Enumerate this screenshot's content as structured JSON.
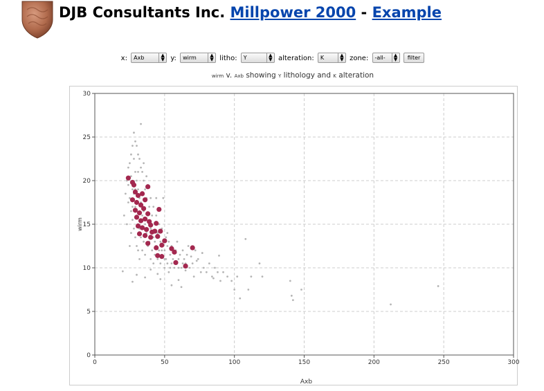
{
  "header": {
    "company": "DJB Consultants Inc.",
    "product_link": "Millpower 2000",
    "separator": "-",
    "example_link": "Example"
  },
  "logo": {
    "icon": "copper-shield-logo",
    "color": "#b06a4c"
  },
  "controls": {
    "x_label": "x:",
    "x_value": "Axb",
    "y_label": "y:",
    "y_value": "wirm",
    "litho_label": "litho:",
    "litho_value": "Y",
    "alteration_label": "alteration:",
    "alteration_value": "K",
    "zone_label": "zone:",
    "zone_value": "-all-",
    "filter_label": "filter",
    "arrow_glyph": "▲▼"
  },
  "subtitle": {
    "y_var": "wirm",
    "v": "v.",
    "x_var": "Axb",
    "showing": "showing",
    "litho": "Y",
    "lithology": "lithology and",
    "alt": "K",
    "alteration": "alteration"
  },
  "chart_data": {
    "type": "scatter",
    "xlabel": "Axb",
    "ylabel": "wirm",
    "xlim": [
      0,
      300
    ],
    "ylim": [
      0,
      30
    ],
    "xticks": [
      0,
      50,
      100,
      150,
      200,
      250,
      300
    ],
    "yticks": [
      0,
      5,
      10,
      15,
      20,
      25,
      30
    ],
    "grid": true,
    "colors": {
      "background_points": "#b5b5b5",
      "highlight_points": "#a3284f",
      "grid": "#cccccc"
    },
    "series": [
      {
        "role": "background",
        "points": [
          [
            20,
            9.6
          ],
          [
            22,
            18.5
          ],
          [
            23,
            20
          ],
          [
            24,
            21.5
          ],
          [
            24,
            17.5
          ],
          [
            25,
            22
          ],
          [
            25,
            18
          ],
          [
            26,
            23
          ],
          [
            26,
            20.5
          ],
          [
            26,
            16.5
          ],
          [
            27,
            24
          ],
          [
            27,
            19
          ],
          [
            27,
            15.5
          ],
          [
            28,
            25.5
          ],
          [
            28,
            22.5
          ],
          [
            28,
            18.5
          ],
          [
            28,
            14.5
          ],
          [
            29,
            24.5
          ],
          [
            29,
            21
          ],
          [
            29,
            17
          ],
          [
            29,
            13.5
          ],
          [
            30,
            24
          ],
          [
            30,
            20
          ],
          [
            30,
            16
          ],
          [
            30,
            12.5
          ],
          [
            31,
            23
          ],
          [
            31,
            19
          ],
          [
            31,
            15
          ],
          [
            31,
            12
          ],
          [
            32,
            22.5
          ],
          [
            32,
            18
          ],
          [
            32,
            14.5
          ],
          [
            33,
            26.5
          ],
          [
            33,
            21.5
          ],
          [
            33,
            17.5
          ],
          [
            33,
            13.5
          ],
          [
            34,
            21
          ],
          [
            34,
            16
          ],
          [
            34,
            12
          ],
          [
            35,
            20
          ],
          [
            35,
            16.5
          ],
          [
            35,
            13
          ],
          [
            36,
            19
          ],
          [
            36,
            15
          ],
          [
            36,
            11.5
          ],
          [
            37,
            18
          ],
          [
            37,
            14
          ],
          [
            38,
            19.5
          ],
          [
            38,
            16
          ],
          [
            38,
            12.5
          ],
          [
            39,
            17
          ],
          [
            39,
            13
          ],
          [
            40,
            18
          ],
          [
            40,
            14.5
          ],
          [
            40,
            11
          ],
          [
            41,
            16
          ],
          [
            41,
            12
          ],
          [
            42,
            17
          ],
          [
            42,
            13.5
          ],
          [
            43,
            15
          ],
          [
            43,
            11.5
          ],
          [
            44,
            16
          ],
          [
            44,
            12.5
          ],
          [
            45,
            14
          ],
          [
            45,
            11
          ],
          [
            46,
            15
          ],
          [
            46,
            12
          ],
          [
            47,
            13
          ],
          [
            47,
            10.5
          ],
          [
            48,
            14.5
          ],
          [
            48,
            11.5
          ],
          [
            49,
            18
          ],
          [
            49,
            13
          ],
          [
            50,
            12
          ],
          [
            50,
            10
          ],
          [
            51,
            13.5
          ],
          [
            51,
            11
          ],
          [
            52,
            12.5
          ],
          [
            52,
            10.5
          ],
          [
            53,
            13
          ],
          [
            54,
            11.5
          ],
          [
            54,
            10
          ],
          [
            55,
            12.5
          ],
          [
            56,
            11
          ],
          [
            57,
            12
          ],
          [
            58,
            10.5
          ],
          [
            59,
            13
          ],
          [
            60,
            11
          ],
          [
            61,
            11.5
          ],
          [
            62,
            10
          ],
          [
            63,
            12
          ],
          [
            64,
            11
          ],
          [
            65,
            10.5
          ],
          [
            66,
            11.5
          ],
          [
            68,
            10
          ],
          [
            70,
            10.5
          ],
          [
            72,
            12
          ],
          [
            74,
            11
          ],
          [
            76,
            9.5
          ],
          [
            78,
            10
          ],
          [
            80,
            9.5
          ],
          [
            82,
            10.5
          ],
          [
            84,
            9
          ],
          [
            86,
            10
          ],
          [
            88,
            9.5
          ],
          [
            90,
            8.5
          ],
          [
            92,
            9.5
          ],
          [
            95,
            9
          ],
          [
            98,
            8.5
          ],
          [
            100,
            7.5
          ],
          [
            102,
            9
          ],
          [
            104,
            6.5
          ],
          [
            108,
            13.3
          ],
          [
            110,
            7.5
          ],
          [
            112,
            9
          ],
          [
            118,
            10.5
          ],
          [
            120,
            9
          ],
          [
            140,
            8.5
          ],
          [
            141,
            6.8
          ],
          [
            142,
            6.3
          ],
          [
            148,
            7.5
          ],
          [
            212,
            5.8
          ],
          [
            246,
            7.9
          ],
          [
            21,
            16
          ],
          [
            23,
            15
          ],
          [
            24,
            19.5
          ],
          [
            26,
            14
          ],
          [
            27,
            17
          ],
          [
            29,
            19
          ],
          [
            31,
            21
          ],
          [
            32,
            11
          ],
          [
            34,
            18.5
          ],
          [
            35,
            22
          ],
          [
            37,
            20.5
          ],
          [
            39,
            15
          ],
          [
            41,
            14
          ],
          [
            43,
            13
          ],
          [
            44,
            18
          ],
          [
            46,
            13.5
          ],
          [
            48,
            12
          ],
          [
            50,
            11
          ],
          [
            52,
            14
          ],
          [
            55,
            10.5
          ],
          [
            58,
            12
          ],
          [
            60,
            10
          ],
          [
            63,
            10.5
          ],
          [
            67,
            12.5
          ],
          [
            71,
            9
          ],
          [
            27,
            8.4
          ],
          [
            30,
            9.2
          ],
          [
            45,
            9.3
          ],
          [
            47,
            8.7
          ],
          [
            55,
            8
          ],
          [
            60,
            8.6
          ],
          [
            62,
            7.8
          ],
          [
            40,
            9.8
          ],
          [
            36,
            8.9
          ],
          [
            25,
            12.5
          ],
          [
            42,
            10.5
          ],
          [
            53,
            9.5
          ],
          [
            57,
            10
          ],
          [
            65,
            9.7
          ],
          [
            69,
            11.3
          ],
          [
            73,
            10.8
          ],
          [
            77,
            11.7
          ],
          [
            85,
            8.8
          ],
          [
            89,
            11.4
          ]
        ]
      },
      {
        "role": "highlight",
        "name": "K",
        "points": [
          [
            24,
            20.3
          ],
          [
            27,
            19.8
          ],
          [
            28,
            19.5
          ],
          [
            29,
            18.7
          ],
          [
            38,
            19.3
          ],
          [
            31,
            18.3
          ],
          [
            34,
            18.5
          ],
          [
            27,
            17.8
          ],
          [
            30,
            17.5
          ],
          [
            33,
            17.2
          ],
          [
            36,
            17.8
          ],
          [
            29,
            16.6
          ],
          [
            32,
            16.3
          ],
          [
            35,
            16.8
          ],
          [
            38,
            16.2
          ],
          [
            30,
            15.8
          ],
          [
            33,
            15.4
          ],
          [
            36,
            15.6
          ],
          [
            39,
            15.3
          ],
          [
            46,
            16.7
          ],
          [
            31,
            14.8
          ],
          [
            34,
            14.6
          ],
          [
            37,
            14.4
          ],
          [
            40,
            14.9
          ],
          [
            43,
            14.2
          ],
          [
            32,
            13.9
          ],
          [
            36,
            13.7
          ],
          [
            40,
            13.5
          ],
          [
            45,
            13.6
          ],
          [
            47,
            14.2
          ],
          [
            38,
            12.8
          ],
          [
            44,
            12.3
          ],
          [
            48,
            12.6
          ],
          [
            50,
            13.1
          ],
          [
            45,
            11.4
          ],
          [
            48,
            11.3
          ],
          [
            55,
            12.2
          ],
          [
            57,
            11.8
          ],
          [
            58,
            10.6
          ],
          [
            65,
            10.2
          ],
          [
            70,
            12.3
          ],
          [
            41,
            14.1
          ],
          [
            44,
            15.1
          ]
        ]
      }
    ]
  }
}
